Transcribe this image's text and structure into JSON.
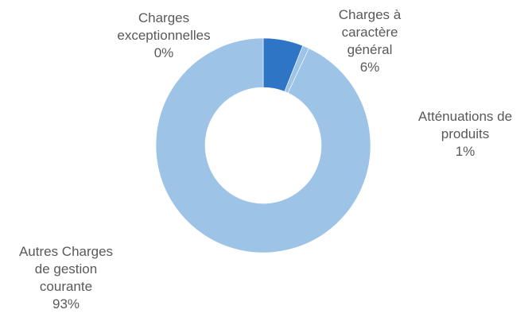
{
  "chart_data": {
    "type": "pie",
    "variant": "donut",
    "slices": [
      {
        "name_lines": [
          "Charges à",
          "caractère",
          "général"
        ],
        "value": 6,
        "label": "6%",
        "color": "#2e75c6"
      },
      {
        "name_lines": [
          "Atténuations de",
          "produits"
        ],
        "value": 1,
        "label": "1%",
        "color": "#9dc3e6"
      },
      {
        "name_lines": [
          "Autres Charges",
          "de gestion",
          "courante"
        ],
        "value": 93,
        "label": "93%",
        "color": "#9dc3e6"
      },
      {
        "name_lines": [
          "Charges",
          "exceptionnelles"
        ],
        "value": 0,
        "label": "0%",
        "color": "#9dc3e6"
      }
    ],
    "start_angle_deg": 0,
    "direction": "clockwise",
    "legend": "none",
    "data_labels": "outside"
  }
}
